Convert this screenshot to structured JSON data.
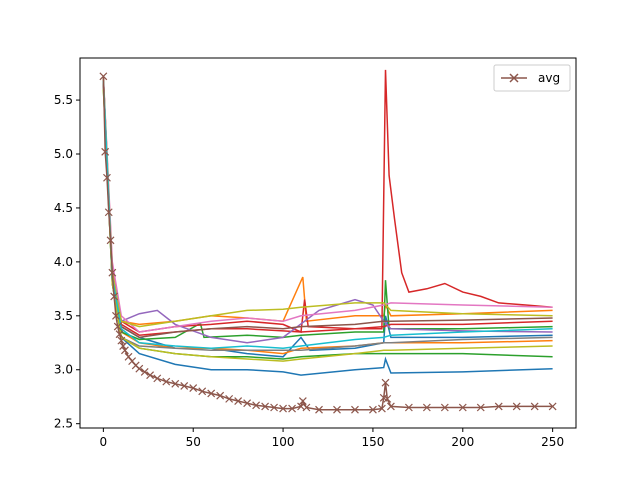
{
  "chart_data": {
    "type": "line",
    "title": "",
    "xlabel": "",
    "ylabel": "",
    "xlim": [
      -13,
      263
    ],
    "ylim": [
      2.46,
      5.89
    ],
    "xticks": [
      0,
      50,
      100,
      150,
      200,
      250
    ],
    "yticks": [
      2.5,
      3.0,
      3.5,
      4.0,
      4.5,
      5.0,
      5.5
    ],
    "grid": false,
    "legend": {
      "position": "top-right",
      "entries": [
        "avg"
      ]
    },
    "avg_series": {
      "name": "avg",
      "color": "#8c564b",
      "marker": "x",
      "points": [
        [
          0,
          5.72
        ],
        [
          1,
          5.02
        ],
        [
          2,
          4.78
        ],
        [
          3,
          4.46
        ],
        [
          4,
          4.2
        ],
        [
          5,
          3.9
        ],
        [
          6,
          3.68
        ],
        [
          7,
          3.5
        ],
        [
          8,
          3.4
        ],
        [
          9,
          3.33
        ],
        [
          10,
          3.27
        ],
        [
          11,
          3.22
        ],
        [
          12,
          3.18
        ],
        [
          14,
          3.12
        ],
        [
          16,
          3.08
        ],
        [
          18,
          3.04
        ],
        [
          20,
          3.01
        ],
        [
          23,
          2.98
        ],
        [
          26,
          2.95
        ],
        [
          30,
          2.92
        ],
        [
          35,
          2.89
        ],
        [
          40,
          2.87
        ],
        [
          45,
          2.85
        ],
        [
          50,
          2.83
        ],
        [
          55,
          2.8
        ],
        [
          60,
          2.78
        ],
        [
          65,
          2.76
        ],
        [
          70,
          2.73
        ],
        [
          75,
          2.71
        ],
        [
          80,
          2.69
        ],
        [
          85,
          2.67
        ],
        [
          90,
          2.66
        ],
        [
          95,
          2.65
        ],
        [
          100,
          2.64
        ],
        [
          105,
          2.64
        ],
        [
          110,
          2.66
        ],
        [
          111,
          2.71
        ],
        [
          113,
          2.65
        ],
        [
          120,
          2.63
        ],
        [
          130,
          2.63
        ],
        [
          140,
          2.63
        ],
        [
          150,
          2.63
        ],
        [
          155,
          2.64
        ],
        [
          156,
          2.74
        ],
        [
          157,
          2.88
        ],
        [
          158,
          2.73
        ],
        [
          160,
          2.66
        ],
        [
          170,
          2.65
        ],
        [
          180,
          2.65
        ],
        [
          190,
          2.65
        ],
        [
          200,
          2.65
        ],
        [
          210,
          2.65
        ],
        [
          220,
          2.66
        ],
        [
          230,
          2.66
        ],
        [
          240,
          2.66
        ],
        [
          250,
          2.66
        ]
      ]
    },
    "series": [
      {
        "color": "#1f77b4",
        "points": [
          [
            0,
            5.7
          ],
          [
            5,
            3.9
          ],
          [
            10,
            3.4
          ],
          [
            20,
            3.3
          ],
          [
            40,
            3.2
          ],
          [
            60,
            3.2
          ],
          [
            80,
            3.15
          ],
          [
            100,
            3.12
          ],
          [
            110,
            3.3
          ],
          [
            115,
            3.18
          ],
          [
            140,
            3.2
          ],
          [
            156,
            3.25
          ],
          [
            157,
            3.5
          ],
          [
            160,
            3.3
          ],
          [
            200,
            3.3
          ],
          [
            250,
            3.32
          ]
        ]
      },
      {
        "color": "#1f77b4",
        "points": [
          [
            0,
            5.65
          ],
          [
            5,
            3.8
          ],
          [
            10,
            3.3
          ],
          [
            20,
            3.15
          ],
          [
            40,
            3.05
          ],
          [
            60,
            3.0
          ],
          [
            80,
            3.0
          ],
          [
            100,
            2.98
          ],
          [
            110,
            2.95
          ],
          [
            140,
            3.0
          ],
          [
            156,
            3.02
          ],
          [
            157,
            3.1
          ],
          [
            160,
            2.97
          ],
          [
            200,
            2.98
          ],
          [
            250,
            3.01
          ]
        ]
      },
      {
        "color": "#ff7f0e",
        "points": [
          [
            0,
            5.7
          ],
          [
            5,
            3.95
          ],
          [
            10,
            3.45
          ],
          [
            20,
            3.42
          ],
          [
            40,
            3.45
          ],
          [
            60,
            3.5
          ],
          [
            80,
            3.48
          ],
          [
            100,
            3.45
          ],
          [
            111,
            3.86
          ],
          [
            113,
            3.45
          ],
          [
            140,
            3.5
          ],
          [
            156,
            3.5
          ],
          [
            157,
            3.6
          ],
          [
            160,
            3.5
          ],
          [
            200,
            3.52
          ],
          [
            250,
            3.55
          ]
        ]
      },
      {
        "color": "#ff7f0e",
        "points": [
          [
            0,
            5.65
          ],
          [
            5,
            3.85
          ],
          [
            10,
            3.35
          ],
          [
            20,
            3.25
          ],
          [
            40,
            3.2
          ],
          [
            60,
            3.2
          ],
          [
            80,
            3.18
          ],
          [
            100,
            3.15
          ],
          [
            110,
            3.2
          ],
          [
            140,
            3.22
          ],
          [
            156,
            3.25
          ],
          [
            160,
            3.25
          ],
          [
            200,
            3.25
          ],
          [
            250,
            3.27
          ]
        ]
      },
      {
        "color": "#2ca02c",
        "points": [
          [
            0,
            5.68
          ],
          [
            5,
            3.85
          ],
          [
            10,
            3.35
          ],
          [
            20,
            3.28
          ],
          [
            40,
            3.3
          ],
          [
            54,
            3.43
          ],
          [
            56,
            3.3
          ],
          [
            80,
            3.32
          ],
          [
            100,
            3.3
          ],
          [
            110,
            3.32
          ],
          [
            140,
            3.35
          ],
          [
            156,
            3.35
          ],
          [
            157,
            3.83
          ],
          [
            159,
            3.38
          ],
          [
            200,
            3.38
          ],
          [
            250,
            3.4
          ]
        ]
      },
      {
        "color": "#2ca02c",
        "points": [
          [
            0,
            5.6
          ],
          [
            5,
            3.8
          ],
          [
            10,
            3.3
          ],
          [
            20,
            3.2
          ],
          [
            40,
            3.15
          ],
          [
            60,
            3.12
          ],
          [
            80,
            3.12
          ],
          [
            100,
            3.1
          ],
          [
            110,
            3.12
          ],
          [
            140,
            3.15
          ],
          [
            156,
            3.15
          ],
          [
            160,
            3.15
          ],
          [
            200,
            3.15
          ],
          [
            250,
            3.12
          ]
        ]
      },
      {
        "color": "#d62728",
        "points": [
          [
            0,
            5.7
          ],
          [
            5,
            3.9
          ],
          [
            10,
            3.45
          ],
          [
            20,
            3.35
          ],
          [
            40,
            3.4
          ],
          [
            60,
            3.42
          ],
          [
            80,
            3.45
          ],
          [
            100,
            3.42
          ],
          [
            110,
            3.35
          ],
          [
            112,
            3.65
          ],
          [
            114,
            3.4
          ],
          [
            140,
            3.38
          ],
          [
            155,
            3.38
          ],
          [
            157,
            5.78
          ],
          [
            159,
            4.8
          ],
          [
            162,
            4.4
          ],
          [
            166,
            3.9
          ],
          [
            170,
            3.72
          ],
          [
            180,
            3.75
          ],
          [
            190,
            3.8
          ],
          [
            200,
            3.72
          ],
          [
            210,
            3.68
          ],
          [
            220,
            3.62
          ],
          [
            235,
            3.6
          ],
          [
            250,
            3.58
          ]
        ]
      },
      {
        "color": "#d62728",
        "points": [
          [
            0,
            5.66
          ],
          [
            5,
            3.88
          ],
          [
            10,
            3.42
          ],
          [
            20,
            3.32
          ],
          [
            40,
            3.35
          ],
          [
            60,
            3.38
          ],
          [
            80,
            3.38
          ],
          [
            100,
            3.36
          ],
          [
            110,
            3.35
          ],
          [
            140,
            3.38
          ],
          [
            156,
            3.4
          ],
          [
            160,
            3.42
          ],
          [
            200,
            3.42
          ],
          [
            250,
            3.45
          ]
        ]
      },
      {
        "color": "#9467bd",
        "points": [
          [
            0,
            5.7
          ],
          [
            5,
            3.9
          ],
          [
            10,
            3.45
          ],
          [
            20,
            3.52
          ],
          [
            30,
            3.55
          ],
          [
            40,
            3.42
          ],
          [
            60,
            3.3
          ],
          [
            80,
            3.25
          ],
          [
            100,
            3.3
          ],
          [
            120,
            3.55
          ],
          [
            140,
            3.65
          ],
          [
            150,
            3.6
          ],
          [
            156,
            3.45
          ],
          [
            160,
            3.38
          ],
          [
            200,
            3.36
          ],
          [
            250,
            3.35
          ]
        ]
      },
      {
        "color": "#8c564b",
        "points": [
          [
            0,
            5.65
          ],
          [
            5,
            3.85
          ],
          [
            10,
            3.4
          ],
          [
            20,
            3.3
          ],
          [
            40,
            3.35
          ],
          [
            60,
            3.38
          ],
          [
            80,
            3.4
          ],
          [
            100,
            3.38
          ],
          [
            110,
            3.4
          ],
          [
            140,
            3.42
          ],
          [
            156,
            3.45
          ],
          [
            160,
            3.45
          ],
          [
            200,
            3.46
          ],
          [
            250,
            3.48
          ]
        ]
      },
      {
        "color": "#e377c2",
        "points": [
          [
            0,
            5.72
          ],
          [
            5,
            4.0
          ],
          [
            10,
            3.5
          ],
          [
            20,
            3.35
          ],
          [
            40,
            3.4
          ],
          [
            60,
            3.45
          ],
          [
            80,
            3.48
          ],
          [
            100,
            3.45
          ],
          [
            110,
            3.5
          ],
          [
            140,
            3.55
          ],
          [
            156,
            3.6
          ],
          [
            160,
            3.62
          ],
          [
            200,
            3.6
          ],
          [
            250,
            3.58
          ]
        ]
      },
      {
        "color": "#7f7f7f",
        "points": [
          [
            0,
            5.62
          ],
          [
            5,
            3.82
          ],
          [
            10,
            3.3
          ],
          [
            20,
            3.22
          ],
          [
            40,
            3.2
          ],
          [
            60,
            3.18
          ],
          [
            80,
            3.18
          ],
          [
            100,
            3.18
          ],
          [
            110,
            3.18
          ],
          [
            140,
            3.22
          ],
          [
            156,
            3.25
          ],
          [
            160,
            3.25
          ],
          [
            200,
            3.28
          ],
          [
            250,
            3.3
          ]
        ]
      },
      {
        "color": "#bcbd22",
        "points": [
          [
            0,
            5.7
          ],
          [
            5,
            3.9
          ],
          [
            10,
            3.45
          ],
          [
            20,
            3.4
          ],
          [
            40,
            3.45
          ],
          [
            60,
            3.5
          ],
          [
            80,
            3.55
          ],
          [
            100,
            3.56
          ],
          [
            110,
            3.58
          ],
          [
            140,
            3.62
          ],
          [
            156,
            3.62
          ],
          [
            160,
            3.55
          ],
          [
            200,
            3.52
          ],
          [
            250,
            3.5
          ]
        ]
      },
      {
        "color": "#bcbd22",
        "points": [
          [
            0,
            5.6
          ],
          [
            5,
            3.8
          ],
          [
            10,
            3.3
          ],
          [
            20,
            3.2
          ],
          [
            40,
            3.15
          ],
          [
            60,
            3.12
          ],
          [
            80,
            3.1
          ],
          [
            100,
            3.08
          ],
          [
            110,
            3.1
          ],
          [
            140,
            3.15
          ],
          [
            156,
            3.18
          ],
          [
            160,
            3.18
          ],
          [
            200,
            3.2
          ],
          [
            250,
            3.22
          ]
        ]
      },
      {
        "color": "#17becf",
        "points": [
          [
            0,
            5.68
          ],
          [
            5,
            3.86
          ],
          [
            10,
            3.38
          ],
          [
            20,
            3.25
          ],
          [
            40,
            3.22
          ],
          [
            60,
            3.2
          ],
          [
            80,
            3.22
          ],
          [
            100,
            3.2
          ],
          [
            110,
            3.22
          ],
          [
            140,
            3.28
          ],
          [
            156,
            3.3
          ],
          [
            160,
            3.32
          ],
          [
            200,
            3.35
          ],
          [
            250,
            3.38
          ]
        ]
      }
    ]
  }
}
